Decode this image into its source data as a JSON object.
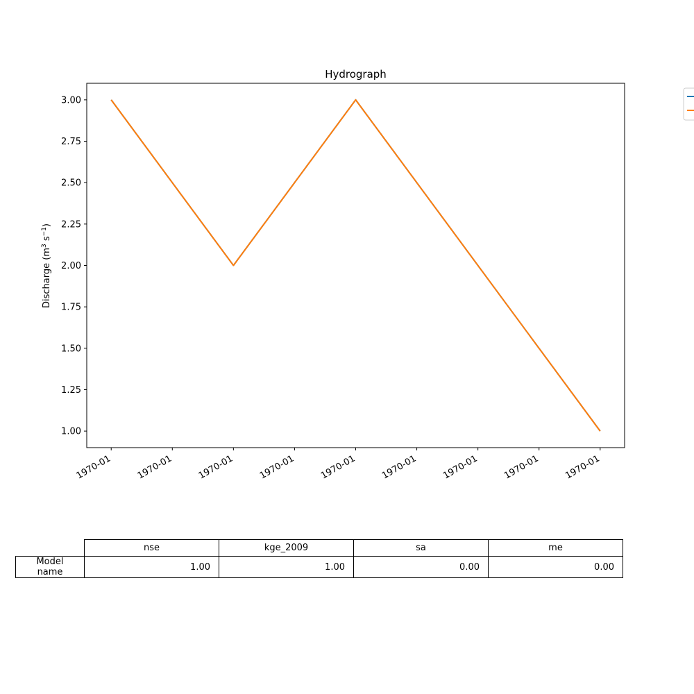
{
  "chart_data": {
    "type": "line",
    "title": "Hydrograph",
    "ylabel": {
      "prefix": "Discharge (m",
      "sup1": "3",
      "mid": " s",
      "sup2": "−1",
      "suffix": ")"
    },
    "xlabel": "",
    "x_tick_labels": [
      "1970-01",
      "1970-01",
      "1970-01",
      "1970-01",
      "1970-01",
      "1970-01",
      "1970-01",
      "1970-01",
      "1970-01"
    ],
    "y_ticks": [
      1.0,
      1.25,
      1.5,
      1.75,
      2.0,
      2.25,
      2.5,
      2.75,
      3.0
    ],
    "y_tick_labels": [
      "1.00",
      "1.25",
      "1.50",
      "1.75",
      "2.00",
      "2.25",
      "2.50",
      "2.75",
      "3.00"
    ],
    "ylim": [
      0.9,
      3.1
    ],
    "x": [
      0,
      2,
      4,
      8
    ],
    "xlim": [
      -0.4,
      8.4
    ],
    "series": [
      {
        "color": "#1f77b4",
        "values": [
          3.0,
          2.0,
          3.0,
          1.0
        ]
      },
      {
        "color": "#ff7f0e",
        "values": [
          3.0,
          2.0,
          3.0,
          1.0
        ]
      }
    ],
    "legend_placement": "outside-top-right",
    "grid": false
  },
  "table": {
    "columns": [
      "nse",
      "kge_2009",
      "sa",
      "me"
    ],
    "rows": [
      {
        "label": "Model name",
        "values": [
          "1.00",
          "1.00",
          "0.00",
          "0.00"
        ]
      }
    ]
  }
}
